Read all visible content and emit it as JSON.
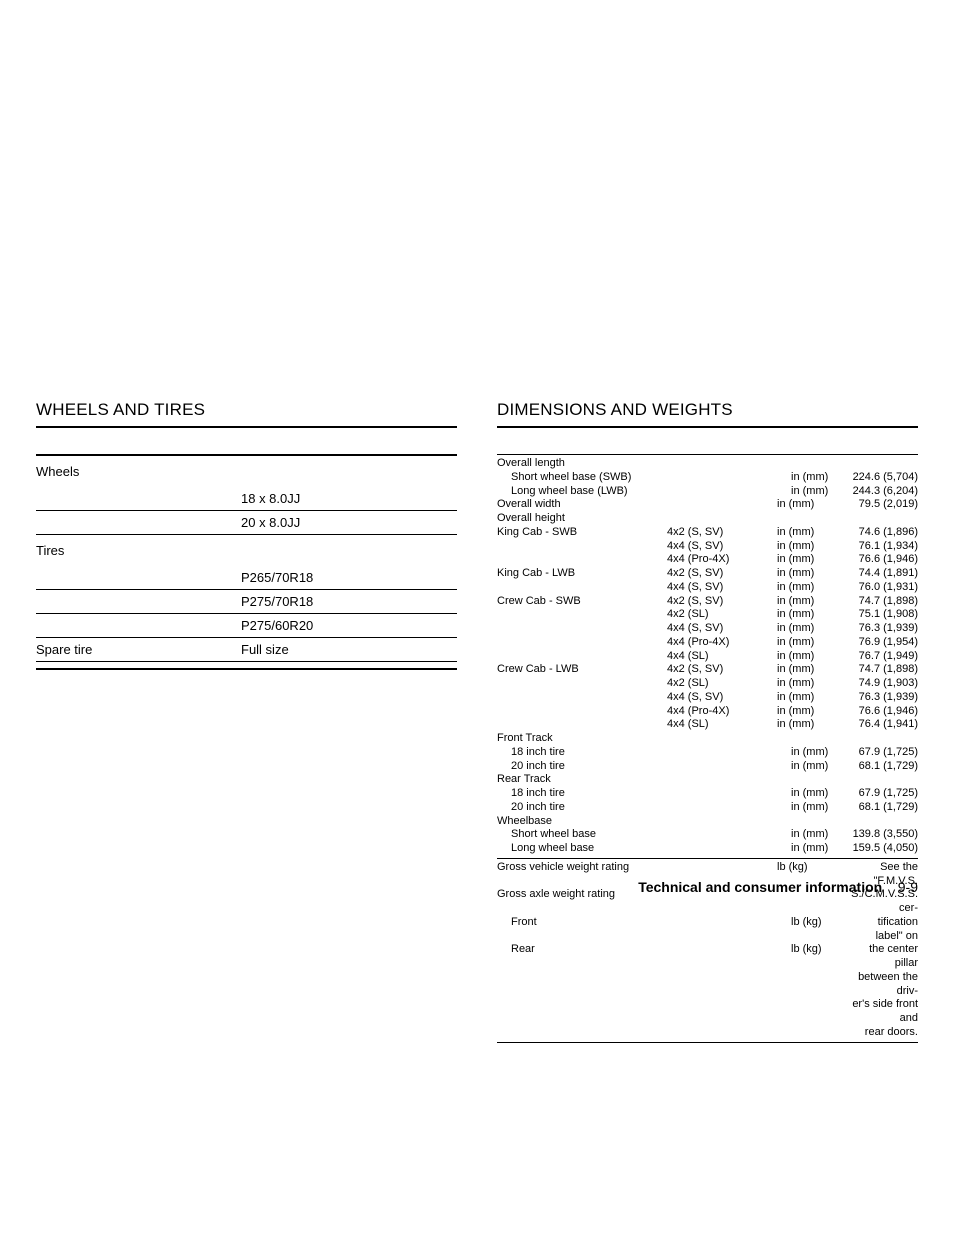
{
  "left": {
    "heading": "WHEELS AND TIRES",
    "wheels_label": "Wheels",
    "wheels_sizes": [
      "18 x 8.0JJ",
      "20 x 8.0JJ"
    ],
    "tires_label": "Tires",
    "tires_sizes": [
      "P265/70R18",
      "P275/70R18",
      "P275/60R20"
    ],
    "spare_label": "Spare tire",
    "spare_value": "Full size"
  },
  "right": {
    "heading": "DIMENSIONS AND WEIGHTS",
    "rows": [
      {
        "c1": "Overall length",
        "c2": "",
        "c3": "",
        "c4": "",
        "indent": 0
      },
      {
        "c1": "Short wheel base (SWB)",
        "c2": "",
        "c3": "in (mm)",
        "c4": "224.6 (5,704)",
        "indent": 1
      },
      {
        "c1": "Long wheel base (LWB)",
        "c2": "",
        "c3": "in (mm)",
        "c4": "244.3 (6,204)",
        "indent": 1
      },
      {
        "c1": "Overall width",
        "c2": "",
        "c3": "in (mm)",
        "c4": "79.5 (2,019)",
        "indent": 0
      },
      {
        "c1": "Overall height",
        "c2": "",
        "c3": "",
        "c4": "",
        "indent": 0
      },
      {
        "c1": "King Cab - SWB",
        "c2": "4x2 (S, SV)",
        "c3": "in (mm)",
        "c4": "74.6 (1,896)",
        "indent": 0
      },
      {
        "c1": "",
        "c2": "4x4 (S, SV)",
        "c3": "in (mm)",
        "c4": "76.1 (1,934)",
        "indent": 0
      },
      {
        "c1": "",
        "c2": "4x4 (Pro-4X)",
        "c3": "in (mm)",
        "c4": "76.6 (1,946)",
        "indent": 0
      },
      {
        "c1": "King Cab - LWB",
        "c2": "4x2 (S, SV)",
        "c3": "in (mm)",
        "c4": "74.4 (1,891)",
        "indent": 0
      },
      {
        "c1": "",
        "c2": "4x4 (S, SV)",
        "c3": "in (mm)",
        "c4": "76.0 (1,931)",
        "indent": 0
      },
      {
        "c1": "Crew Cab - SWB",
        "c2": "4x2 (S, SV)",
        "c3": "in (mm)",
        "c4": "74.7 (1,898)",
        "indent": 0
      },
      {
        "c1": "",
        "c2": "4x2 (SL)",
        "c3": "in (mm)",
        "c4": "75.1 (1,908)",
        "indent": 0
      },
      {
        "c1": "",
        "c2": "4x4 (S, SV)",
        "c3": "in (mm)",
        "c4": "76.3 (1,939)",
        "indent": 0
      },
      {
        "c1": "",
        "c2": "4x4 (Pro-4X)",
        "c3": "in (mm)",
        "c4": "76.9 (1,954)",
        "indent": 0
      },
      {
        "c1": "",
        "c2": "4x4 (SL)",
        "c3": "in (mm)",
        "c4": "76.7 (1,949)",
        "indent": 0
      },
      {
        "c1": "Crew Cab - LWB",
        "c2": "4x2 (S, SV)",
        "c3": "in (mm)",
        "c4": "74.7 (1,898)",
        "indent": 0
      },
      {
        "c1": "",
        "c2": "4x2 (SL)",
        "c3": "in (mm)",
        "c4": "74.9 (1,903)",
        "indent": 0
      },
      {
        "c1": "",
        "c2": "4x4 (S, SV)",
        "c3": "in (mm)",
        "c4": "76.3 (1,939)",
        "indent": 0
      },
      {
        "c1": "",
        "c2": "4x4 (Pro-4X)",
        "c3": "in (mm)",
        "c4": "76.6 (1,946)",
        "indent": 0
      },
      {
        "c1": "",
        "c2": "4x4 (SL)",
        "c3": "in (mm)",
        "c4": "76.4 (1,941)",
        "indent": 0
      },
      {
        "c1": "Front Track",
        "c2": "",
        "c3": "",
        "c4": "",
        "indent": 0
      },
      {
        "c1": "18 inch tire",
        "c2": "",
        "c3": "in (mm)",
        "c4": "67.9 (1,725)",
        "indent": 1
      },
      {
        "c1": "20 inch tire",
        "c2": "",
        "c3": "in (mm)",
        "c4": "68.1 (1,729)",
        "indent": 1
      },
      {
        "c1": "Rear Track",
        "c2": "",
        "c3": "",
        "c4": "",
        "indent": 0
      },
      {
        "c1": "18 inch tire",
        "c2": "",
        "c3": "in (mm)",
        "c4": "67.9 (1,725)",
        "indent": 1
      },
      {
        "c1": "20 inch tire",
        "c2": "",
        "c3": "in (mm)",
        "c4": "68.1 (1,729)",
        "indent": 1
      },
      {
        "c1": "Wheelbase",
        "c2": "",
        "c3": "",
        "c4": "",
        "indent": 0
      },
      {
        "c1": "Short wheel base",
        "c2": "",
        "c3": "in (mm)",
        "c4": "139.8 (3,550)",
        "indent": 1
      },
      {
        "c1": "Long wheel base",
        "c2": "",
        "c3": "in (mm)",
        "c4": "159.5 (4,050)",
        "indent": 1
      }
    ],
    "rows2": [
      {
        "c1": "Gross vehicle weight rating",
        "c2": "",
        "c3": "lb (kg)",
        "c4": "See the \"F.M.V.S.",
        "indent": 0
      },
      {
        "c1": "Gross axle weight rating",
        "c2": "",
        "c3": "",
        "c4": "S./C.M.V.S.S. cer-",
        "indent": 0
      },
      {
        "c1": "Front",
        "c2": "",
        "c3": "lb (kg)",
        "c4": "tification label\" on",
        "indent": 1
      },
      {
        "c1": "Rear",
        "c2": "",
        "c3": "lb (kg)",
        "c4": "the center pillar",
        "indent": 1
      },
      {
        "c1": "",
        "c2": "",
        "c3": "",
        "c4": "between the driv-",
        "indent": 0
      },
      {
        "c1": "",
        "c2": "",
        "c3": "",
        "c4": "er's side front and",
        "indent": 0
      },
      {
        "c1": "",
        "c2": "",
        "c3": "",
        "c4": "rear doors.",
        "indent": 0
      }
    ]
  },
  "footer": {
    "bold": "Technical and consumer information",
    "page": "9-9"
  }
}
